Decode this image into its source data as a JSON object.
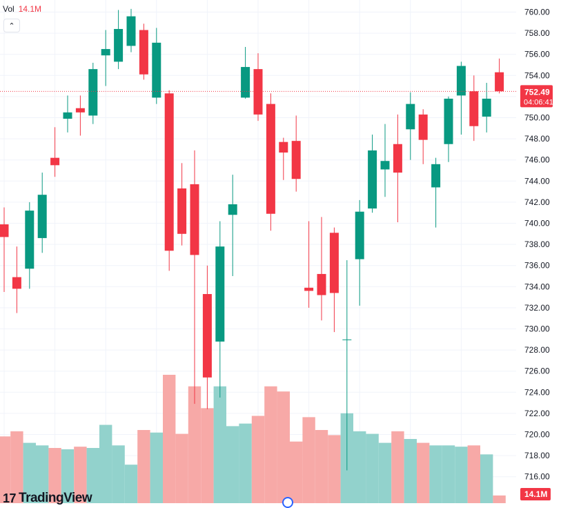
{
  "legend": {
    "label": "Vol",
    "value": "14.1M"
  },
  "colors": {
    "up": "#089981",
    "down": "#f23645",
    "upVol": "#92d2cc",
    "downVol": "#f7a9a7",
    "grid": "#f0f3fa"
  },
  "price_label": {
    "price": "752.49",
    "countdown": "04:06:41"
  },
  "volume_label": "14.1M",
  "logo": {
    "text": "TradingView",
    "mark": "17"
  },
  "chart_data": {
    "type": "candlestick",
    "y_axis": {
      "ticks": [
        "760.00",
        "758.00",
        "756.00",
        "754.00",
        "752.00",
        "750.00",
        "748.00",
        "746.00",
        "744.00",
        "742.00",
        "740.00",
        "738.00",
        "736.00",
        "734.00",
        "732.00",
        "730.00",
        "728.00",
        "726.00",
        "724.00",
        "722.00",
        "720.00",
        "718.00",
        "716.00"
      ],
      "range": [
        715.5,
        761.0
      ]
    },
    "last_price": 752.49,
    "series": [
      {
        "o": 739.9,
        "h": 741.5,
        "l": 733.5,
        "c": 738.7,
        "v": 0.52
      },
      {
        "o": 734.9,
        "h": 737.8,
        "l": 731.5,
        "c": 733.8,
        "v": 0.56
      },
      {
        "o": 735.7,
        "h": 742.0,
        "l": 733.8,
        "c": 741.2,
        "v": 0.47
      },
      {
        "o": 738.6,
        "h": 744.8,
        "l": 737.2,
        "c": 742.7,
        "v": 0.45
      },
      {
        "o": 746.2,
        "h": 749.1,
        "l": 744.4,
        "c": 745.5,
        "v": 0.43
      },
      {
        "o": 749.9,
        "h": 752.1,
        "l": 748.6,
        "c": 750.5,
        "v": 0.42
      },
      {
        "o": 750.9,
        "h": 752.1,
        "l": 748.3,
        "c": 750.5,
        "v": 0.44
      },
      {
        "o": 750.2,
        "h": 755.2,
        "l": 749.4,
        "c": 754.6,
        "v": 0.43
      },
      {
        "o": 755.9,
        "h": 758.3,
        "l": 753.0,
        "c": 756.5,
        "v": 0.61
      },
      {
        "o": 755.3,
        "h": 760.2,
        "l": 754.6,
        "c": 758.4,
        "v": 0.45
      },
      {
        "o": 756.8,
        "h": 760.3,
        "l": 756.2,
        "c": 759.6,
        "v": 0.3
      },
      {
        "o": 758.3,
        "h": 758.9,
        "l": 753.6,
        "c": 754.1,
        "v": 0.57
      },
      {
        "o": 751.9,
        "h": 758.5,
        "l": 751.3,
        "c": 757.1,
        "v": 0.55
      },
      {
        "o": 752.3,
        "h": 752.6,
        "l": 735.5,
        "c": 737.4,
        "v": 1.0
      },
      {
        "o": 743.3,
        "h": 745.7,
        "l": 737.9,
        "c": 739.0,
        "v": 0.54
      },
      {
        "o": 743.7,
        "h": 746.9,
        "l": 722.9,
        "c": 737.0,
        "v": 0.91
      },
      {
        "o": 733.3,
        "h": 736.0,
        "l": 722.4,
        "c": 725.4,
        "v": 0.74
      },
      {
        "o": 728.8,
        "h": 740.2,
        "l": 723.5,
        "c": 737.8,
        "v": 0.91
      },
      {
        "o": 740.8,
        "h": 744.6,
        "l": 735.0,
        "c": 741.8,
        "v": 0.6
      },
      {
        "o": 751.9,
        "h": 756.7,
        "l": 751.8,
        "c": 754.8,
        "v": 0.62
      },
      {
        "o": 754.6,
        "h": 756.1,
        "l": 749.7,
        "c": 750.3,
        "v": 0.68
      },
      {
        "o": 751.3,
        "h": 752.3,
        "l": 739.3,
        "c": 740.9,
        "v": 0.91
      },
      {
        "o": 747.7,
        "h": 748.1,
        "l": 744.1,
        "c": 746.7,
        "v": 0.87
      },
      {
        "o": 747.8,
        "h": 750.2,
        "l": 743.0,
        "c": 744.2,
        "v": 0.48
      },
      {
        "o": 733.9,
        "h": 740.2,
        "l": 732.0,
        "c": 733.6,
        "v": 0.67
      },
      {
        "o": 735.2,
        "h": 740.6,
        "l": 730.8,
        "c": 733.2,
        "v": 0.57
      },
      {
        "o": 739.1,
        "h": 739.6,
        "l": 729.7,
        "c": 733.4,
        "v": 0.53
      },
      {
        "o": 729.0,
        "h": 736.5,
        "l": 716.6,
        "c": 729.0,
        "v": 0.7
      },
      {
        "o": 736.6,
        "h": 742.2,
        "l": 732.2,
        "c": 741.1,
        "v": 0.56
      },
      {
        "o": 741.4,
        "h": 748.4,
        "l": 741.0,
        "c": 746.9,
        "v": 0.54
      },
      {
        "o": 745.1,
        "h": 749.4,
        "l": 742.5,
        "c": 745.9,
        "v": 0.47
      },
      {
        "o": 747.5,
        "h": 750.3,
        "l": 740.1,
        "c": 744.8,
        "v": 0.56
      },
      {
        "o": 748.9,
        "h": 752.4,
        "l": 746.0,
        "c": 751.3,
        "v": 0.5
      },
      {
        "o": 750.3,
        "h": 750.8,
        "l": 745.6,
        "c": 747.9,
        "v": 0.47
      },
      {
        "o": 743.4,
        "h": 746.2,
        "l": 739.6,
        "c": 745.6,
        "v": 0.45
      },
      {
        "o": 747.5,
        "h": 752.0,
        "l": 745.8,
        "c": 751.8,
        "v": 0.45
      },
      {
        "o": 752.1,
        "h": 755.3,
        "l": 748.4,
        "c": 754.9,
        "v": 0.44
      },
      {
        "o": 752.5,
        "h": 754.0,
        "l": 747.8,
        "c": 749.2,
        "v": 0.45
      },
      {
        "o": 750.1,
        "h": 753.3,
        "l": 748.6,
        "c": 751.8,
        "v": 0.38
      },
      {
        "o": 754.3,
        "h": 755.6,
        "l": 752.3,
        "c": 752.5,
        "v": 0.06
      }
    ]
  }
}
